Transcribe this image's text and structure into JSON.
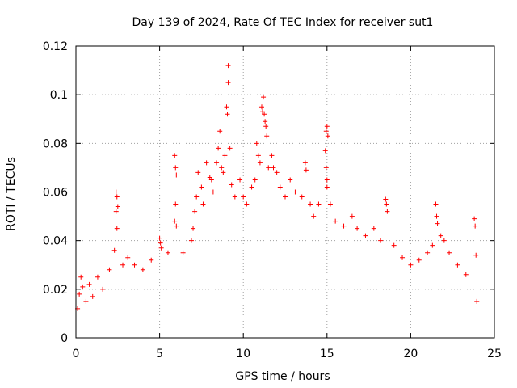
{
  "chart_data": {
    "type": "scatter",
    "title": "Day 139 of 2024, Rate Of TEC Index for receiver sut1",
    "xlabel": "GPS time / hours",
    "ylabel": "ROTI / TECUs",
    "xlim": [
      0,
      25
    ],
    "ylim": [
      0,
      0.12
    ],
    "x_ticks": [
      "0",
      "5",
      "10",
      "15",
      "20",
      "25"
    ],
    "y_ticks": [
      "0",
      "0.02",
      "0.04",
      "0.06",
      "0.08",
      "0.1",
      "0.12"
    ],
    "grid": true,
    "marker": "+",
    "color": "#ff0000",
    "series": [
      {
        "name": "sut1",
        "points": [
          [
            0.1,
            0.012
          ],
          [
            0.2,
            0.018
          ],
          [
            0.3,
            0.025
          ],
          [
            0.4,
            0.021
          ],
          [
            0.6,
            0.015
          ],
          [
            0.8,
            0.022
          ],
          [
            1.0,
            0.017
          ],
          [
            1.3,
            0.025
          ],
          [
            1.6,
            0.02
          ],
          [
            2.0,
            0.028
          ],
          [
            2.3,
            0.036
          ],
          [
            2.4,
            0.06
          ],
          [
            2.45,
            0.058
          ],
          [
            2.5,
            0.054
          ],
          [
            2.4,
            0.052
          ],
          [
            2.45,
            0.045
          ],
          [
            2.8,
            0.03
          ],
          [
            3.1,
            0.033
          ],
          [
            3.5,
            0.03
          ],
          [
            4.0,
            0.028
          ],
          [
            4.5,
            0.032
          ],
          [
            5.0,
            0.041
          ],
          [
            5.05,
            0.039
          ],
          [
            5.1,
            0.037
          ],
          [
            5.5,
            0.035
          ],
          [
            5.9,
            0.075
          ],
          [
            5.95,
            0.07
          ],
          [
            6.0,
            0.067
          ],
          [
            5.95,
            0.055
          ],
          [
            5.9,
            0.048
          ],
          [
            6.0,
            0.046
          ],
          [
            6.4,
            0.035
          ],
          [
            6.9,
            0.04
          ],
          [
            7.0,
            0.045
          ],
          [
            7.1,
            0.052
          ],
          [
            7.2,
            0.058
          ],
          [
            7.3,
            0.068
          ],
          [
            7.5,
            0.062
          ],
          [
            7.6,
            0.055
          ],
          [
            7.8,
            0.072
          ],
          [
            8.0,
            0.066
          ],
          [
            8.1,
            0.065
          ],
          [
            8.2,
            0.06
          ],
          [
            8.4,
            0.072
          ],
          [
            8.5,
            0.078
          ],
          [
            8.6,
            0.085
          ],
          [
            8.7,
            0.07
          ],
          [
            8.8,
            0.068
          ],
          [
            8.9,
            0.075
          ],
          [
            9.0,
            0.095
          ],
          [
            9.05,
            0.092
          ],
          [
            9.1,
            0.105
          ],
          [
            9.1,
            0.112
          ],
          [
            9.2,
            0.078
          ],
          [
            9.3,
            0.063
          ],
          [
            9.5,
            0.058
          ],
          [
            9.8,
            0.065
          ],
          [
            10.0,
            0.058
          ],
          [
            10.2,
            0.055
          ],
          [
            10.5,
            0.062
          ],
          [
            10.7,
            0.065
          ],
          [
            10.8,
            0.08
          ],
          [
            10.9,
            0.075
          ],
          [
            11.0,
            0.072
          ],
          [
            11.1,
            0.095
          ],
          [
            11.15,
            0.093
          ],
          [
            11.2,
            0.099
          ],
          [
            11.25,
            0.092
          ],
          [
            11.3,
            0.089
          ],
          [
            11.35,
            0.087
          ],
          [
            11.4,
            0.083
          ],
          [
            11.5,
            0.07
          ],
          [
            11.7,
            0.075
          ],
          [
            11.8,
            0.07
          ],
          [
            12.0,
            0.068
          ],
          [
            12.2,
            0.062
          ],
          [
            12.5,
            0.058
          ],
          [
            12.8,
            0.065
          ],
          [
            13.1,
            0.06
          ],
          [
            13.5,
            0.058
          ],
          [
            13.7,
            0.072
          ],
          [
            13.75,
            0.069
          ],
          [
            14.0,
            0.055
          ],
          [
            14.2,
            0.05
          ],
          [
            14.5,
            0.055
          ],
          [
            14.9,
            0.077
          ],
          [
            14.95,
            0.085
          ],
          [
            15.0,
            0.087
          ],
          [
            15.05,
            0.083
          ],
          [
            14.95,
            0.07
          ],
          [
            15.0,
            0.065
          ],
          [
            15.0,
            0.062
          ],
          [
            15.2,
            0.055
          ],
          [
            15.5,
            0.048
          ],
          [
            16.0,
            0.046
          ],
          [
            16.5,
            0.05
          ],
          [
            16.8,
            0.045
          ],
          [
            17.3,
            0.042
          ],
          [
            17.8,
            0.045
          ],
          [
            18.2,
            0.04
          ],
          [
            18.5,
            0.057
          ],
          [
            18.55,
            0.055
          ],
          [
            18.6,
            0.052
          ],
          [
            19.0,
            0.038
          ],
          [
            19.5,
            0.033
          ],
          [
            20.0,
            0.03
          ],
          [
            20.5,
            0.032
          ],
          [
            21.0,
            0.035
          ],
          [
            21.3,
            0.038
          ],
          [
            21.5,
            0.055
          ],
          [
            21.55,
            0.05
          ],
          [
            21.6,
            0.047
          ],
          [
            21.8,
            0.042
          ],
          [
            22.0,
            0.04
          ],
          [
            22.3,
            0.035
          ],
          [
            22.8,
            0.03
          ],
          [
            23.3,
            0.026
          ],
          [
            23.8,
            0.049
          ],
          [
            23.85,
            0.046
          ],
          [
            23.9,
            0.034
          ],
          [
            23.95,
            0.015
          ]
        ]
      }
    ]
  }
}
